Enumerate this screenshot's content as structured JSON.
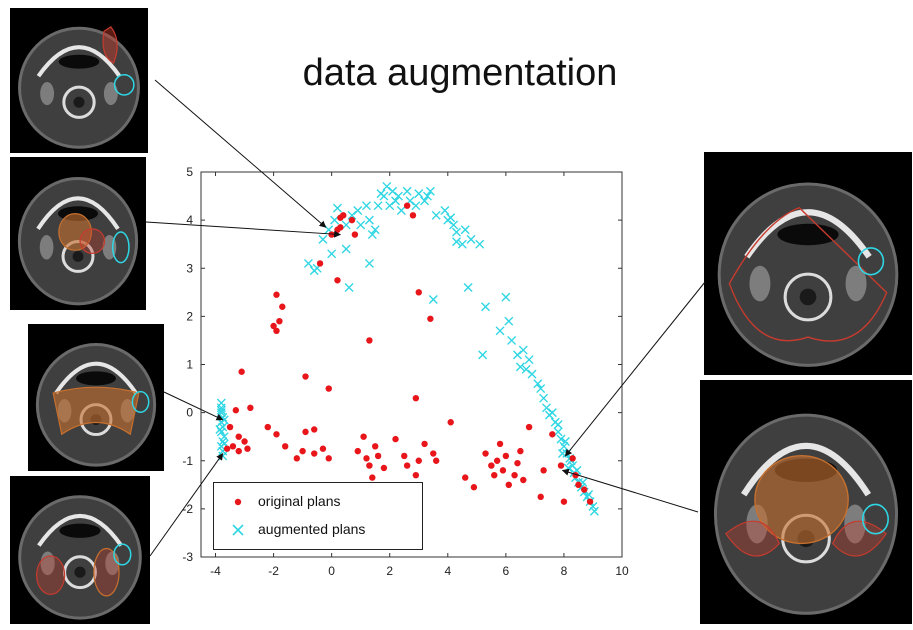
{
  "page": {
    "title": "data augmentation"
  },
  "colors": {
    "original": "#e8151b",
    "augmented": "#2fd6e3",
    "axis": "#333333",
    "arrow": "#111111"
  },
  "panels": [
    {
      "name": "ct-scan-top-left",
      "contour_colors": [
        "#c73b2e",
        "#2fd6e3"
      ]
    },
    {
      "name": "ct-scan-mid-left",
      "contour_colors": [
        "#c7702e",
        "#c73b2e",
        "#2fd6e3"
      ]
    },
    {
      "name": "ct-scan-lower-left",
      "contour_colors": [
        "#c7702e",
        "#2fd6e3"
      ]
    },
    {
      "name": "ct-scan-bottom-left",
      "contour_colors": [
        "#c73b2e",
        "#c7702e",
        "#2fd6e3"
      ]
    },
    {
      "name": "ct-scan-top-right",
      "contour_colors": [
        "#c73b2e",
        "#2fd6e3"
      ]
    },
    {
      "name": "ct-scan-bottom-right",
      "contour_colors": [
        "#c7702e",
        "#c73b2e",
        "#2fd6e3"
      ]
    }
  ],
  "chart_data": {
    "type": "scatter",
    "title": "",
    "xlabel": "",
    "ylabel": "",
    "xlim": [
      -4.5,
      10
    ],
    "ylim": [
      -3,
      5
    ],
    "xticks": [
      -4,
      -2,
      0,
      2,
      4,
      6,
      8,
      10
    ],
    "yticks": [
      -3,
      -2,
      -1,
      0,
      1,
      2,
      3,
      4,
      5
    ],
    "grid": false,
    "legend": {
      "position": "bottom-left",
      "entries": [
        {
          "label": "original plans",
          "marker": "dot"
        },
        {
          "label": "augmented plans",
          "marker": "x"
        }
      ]
    },
    "series": [
      {
        "name": "original plans",
        "marker": "dot",
        "points": [
          [
            0.0,
            3.7
          ],
          [
            0.2,
            3.8
          ],
          [
            0.3,
            4.05
          ],
          [
            0.4,
            4.1
          ],
          [
            0.3,
            3.85
          ],
          [
            0.7,
            4.0
          ],
          [
            0.8,
            3.7
          ],
          [
            2.6,
            4.3
          ],
          [
            2.8,
            4.1
          ],
          [
            -0.4,
            3.1
          ],
          [
            0.2,
            2.75
          ],
          [
            -1.9,
            2.45
          ],
          [
            -1.7,
            2.2
          ],
          [
            -1.8,
            1.9
          ],
          [
            -1.9,
            1.7
          ],
          [
            -2.0,
            1.8
          ],
          [
            3.0,
            2.5
          ],
          [
            1.3,
            1.5
          ],
          [
            3.4,
            1.95
          ],
          [
            -0.9,
            0.75
          ],
          [
            -0.1,
            0.5
          ],
          [
            2.9,
            0.3
          ],
          [
            -3.1,
            0.85
          ],
          [
            -2.8,
            0.1
          ],
          [
            -3.3,
            0.05
          ],
          [
            -3.5,
            -0.3
          ],
          [
            -3.2,
            -0.5
          ],
          [
            -3.0,
            -0.6
          ],
          [
            -3.4,
            -0.7
          ],
          [
            -2.9,
            -0.75
          ],
          [
            -3.2,
            -0.8
          ],
          [
            -3.6,
            -0.75
          ],
          [
            -2.2,
            -0.3
          ],
          [
            -1.9,
            -0.45
          ],
          [
            -1.6,
            -0.7
          ],
          [
            -1.2,
            -0.95
          ],
          [
            -1.0,
            -0.8
          ],
          [
            -0.9,
            -0.4
          ],
          [
            -0.6,
            -0.85
          ],
          [
            -0.3,
            -0.75
          ],
          [
            -0.1,
            -0.95
          ],
          [
            -0.6,
            -0.35
          ],
          [
            0.9,
            -0.8
          ],
          [
            1.1,
            -0.5
          ],
          [
            1.2,
            -0.95
          ],
          [
            1.3,
            -1.1
          ],
          [
            1.4,
            -1.35
          ],
          [
            1.6,
            -0.9
          ],
          [
            1.8,
            -1.15
          ],
          [
            1.5,
            -0.7
          ],
          [
            2.2,
            -0.55
          ],
          [
            2.5,
            -0.9
          ],
          [
            2.6,
            -1.1
          ],
          [
            2.9,
            -1.3
          ],
          [
            3.0,
            -1.0
          ],
          [
            3.2,
            -0.65
          ],
          [
            3.5,
            -0.85
          ],
          [
            3.6,
            -1.0
          ],
          [
            4.1,
            -0.2
          ],
          [
            4.6,
            -1.35
          ],
          [
            4.9,
            -1.55
          ],
          [
            5.3,
            -0.85
          ],
          [
            5.5,
            -1.1
          ],
          [
            5.6,
            -1.3
          ],
          [
            5.7,
            -1.0
          ],
          [
            5.8,
            -0.65
          ],
          [
            5.9,
            -1.2
          ],
          [
            6.0,
            -0.9
          ],
          [
            6.1,
            -1.5
          ],
          [
            6.3,
            -1.3
          ],
          [
            6.4,
            -1.05
          ],
          [
            6.5,
            -0.8
          ],
          [
            6.6,
            -1.4
          ],
          [
            6.8,
            -0.3
          ],
          [
            7.2,
            -1.75
          ],
          [
            7.3,
            -1.2
          ],
          [
            7.6,
            -0.45
          ],
          [
            7.9,
            -1.1
          ],
          [
            8.0,
            -1.85
          ],
          [
            8.3,
            -0.95
          ],
          [
            8.4,
            -1.3
          ],
          [
            8.5,
            -1.5
          ],
          [
            8.7,
            -1.6
          ],
          [
            8.9,
            -1.85
          ]
        ]
      },
      {
        "name": "augmented plans",
        "marker": "x",
        "points": [
          [
            -3.8,
            0.2
          ],
          [
            -3.8,
            0.1
          ],
          [
            -3.8,
            0.0
          ],
          [
            -3.75,
            -0.1
          ],
          [
            -3.8,
            -0.2
          ],
          [
            -3.75,
            -0.3
          ],
          [
            -3.8,
            -0.4
          ],
          [
            -3.7,
            -0.5
          ],
          [
            -3.75,
            -0.6
          ],
          [
            -3.8,
            -0.7
          ],
          [
            -3.75,
            -0.8
          ],
          [
            -3.8,
            0.05
          ],
          [
            -3.7,
            -0.15
          ],
          [
            -3.85,
            -0.35
          ],
          [
            -3.7,
            -0.65
          ],
          [
            -3.75,
            -0.9
          ],
          [
            -0.6,
            2.95
          ],
          [
            -0.8,
            3.1
          ],
          [
            -0.5,
            3.0
          ],
          [
            0.0,
            3.3
          ],
          [
            0.6,
            2.6
          ],
          [
            0.5,
            3.4
          ],
          [
            1.3,
            3.1
          ],
          [
            -0.3,
            3.6
          ],
          [
            -0.1,
            3.8
          ],
          [
            0.1,
            4.0
          ],
          [
            0.2,
            4.25
          ],
          [
            0.5,
            3.9
          ],
          [
            0.7,
            4.1
          ],
          [
            0.9,
            4.2
          ],
          [
            1.0,
            3.9
          ],
          [
            1.2,
            4.3
          ],
          [
            1.3,
            4.0
          ],
          [
            1.4,
            3.7
          ],
          [
            1.5,
            3.8
          ],
          [
            1.6,
            4.3
          ],
          [
            1.7,
            4.55
          ],
          [
            1.8,
            4.5
          ],
          [
            1.9,
            4.7
          ],
          [
            2.0,
            4.3
          ],
          [
            2.1,
            4.6
          ],
          [
            2.2,
            4.4
          ],
          [
            2.3,
            4.5
          ],
          [
            2.4,
            4.2
          ],
          [
            2.6,
            4.6
          ],
          [
            2.7,
            4.4
          ],
          [
            2.9,
            4.3
          ],
          [
            3.0,
            4.55
          ],
          [
            3.2,
            4.4
          ],
          [
            3.3,
            4.5
          ],
          [
            3.4,
            4.6
          ],
          [
            3.6,
            4.1
          ],
          [
            3.9,
            4.2
          ],
          [
            4.0,
            4.0
          ],
          [
            4.1,
            4.05
          ],
          [
            4.2,
            3.9
          ],
          [
            4.3,
            3.75
          ],
          [
            4.3,
            3.55
          ],
          [
            4.5,
            3.5
          ],
          [
            4.6,
            3.8
          ],
          [
            4.8,
            3.6
          ],
          [
            5.1,
            3.5
          ],
          [
            3.5,
            2.35
          ],
          [
            4.7,
            2.6
          ],
          [
            5.3,
            2.2
          ],
          [
            6.0,
            2.4
          ],
          [
            6.1,
            1.9
          ],
          [
            5.8,
            1.7
          ],
          [
            6.2,
            1.5
          ],
          [
            6.4,
            1.2
          ],
          [
            6.5,
            0.95
          ],
          [
            6.6,
            1.3
          ],
          [
            6.7,
            0.9
          ],
          [
            6.8,
            1.1
          ],
          [
            6.9,
            0.8
          ],
          [
            7.1,
            0.6
          ],
          [
            7.2,
            0.5
          ],
          [
            7.3,
            0.3
          ],
          [
            7.4,
            0.1
          ],
          [
            7.5,
            -0.05
          ],
          [
            7.6,
            0.0
          ],
          [
            7.7,
            -0.2
          ],
          [
            7.8,
            -0.4
          ],
          [
            7.9,
            -0.55
          ],
          [
            8.0,
            -0.7
          ],
          [
            8.1,
            -0.85
          ],
          [
            8.2,
            -0.95
          ],
          [
            8.3,
            -1.1
          ],
          [
            8.35,
            -1.25
          ],
          [
            8.4,
            -1.35
          ],
          [
            8.5,
            -1.45
          ],
          [
            8.6,
            -1.55
          ],
          [
            8.7,
            -1.65
          ],
          [
            8.8,
            -1.75
          ],
          [
            8.9,
            -1.85
          ],
          [
            9.0,
            -1.95
          ],
          [
            9.05,
            -2.05
          ],
          [
            5.2,
            1.2
          ],
          [
            7.8,
            -0.25
          ],
          [
            8.05,
            -0.6
          ],
          [
            8.25,
            -1.0
          ],
          [
            8.45,
            -1.2
          ],
          [
            8.65,
            -1.45
          ],
          [
            8.85,
            -1.7
          ],
          [
            7.95,
            -0.85
          ],
          [
            8.15,
            -1.15
          ]
        ]
      }
    ]
  },
  "arrows": [
    {
      "from_panel": "ct-scan-top-left",
      "to": [
        -0.2,
        3.85
      ]
    },
    {
      "from_panel": "ct-scan-mid-left",
      "to": [
        0.3,
        3.7
      ]
    },
    {
      "from_panel": "ct-scan-lower-left",
      "to": [
        -3.75,
        -0.15
      ]
    },
    {
      "from_panel": "ct-scan-bottom-left",
      "to": [
        -3.75,
        -0.85
      ]
    },
    {
      "from_panel": "ct-scan-top-right",
      "to": [
        8.05,
        -0.9
      ]
    },
    {
      "from_panel": "ct-scan-bottom-right",
      "to": [
        7.95,
        -1.2
      ]
    }
  ]
}
